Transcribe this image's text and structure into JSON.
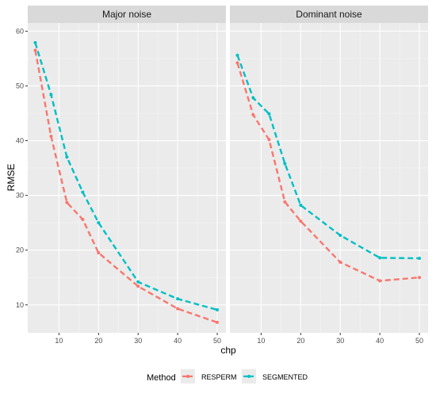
{
  "chart_data": {
    "type": "line",
    "ylabel": "RMSE",
    "xlabel": "chp",
    "x_ticks": [
      10,
      20,
      30,
      40,
      50
    ],
    "y_ticks": [
      10,
      20,
      30,
      40,
      50,
      60
    ],
    "xlim": [
      2.1,
      52.2
    ],
    "ylim": [
      4.9,
      61.5
    ],
    "legend": {
      "title": "Method",
      "position": "bottom",
      "entries": [
        "RESPERM",
        "SEGMENTED"
      ]
    },
    "colors": {
      "RESPERM": "#F8766D",
      "SEGMENTED": "#00BFC4"
    },
    "grid": true,
    "panels": [
      {
        "title": "Major noise",
        "series": [
          {
            "name": "RESPERM",
            "x": [
              4,
              8,
              12,
              16,
              20,
              30,
              40,
              50
            ],
            "y": [
              56.5,
              40.8,
              28.7,
              25.6,
              19.5,
              13.4,
              9.3,
              6.8
            ]
          },
          {
            "name": "SEGMENTED",
            "x": [
              4,
              8,
              12,
              16,
              20,
              30,
              40,
              50
            ],
            "y": [
              57.9,
              48.4,
              37.0,
              30.6,
              25.0,
              14.2,
              11.1,
              9.1
            ]
          }
        ]
      },
      {
        "title": "Dominant noise",
        "series": [
          {
            "name": "RESPERM",
            "x": [
              4,
              8,
              12,
              16,
              20,
              30,
              40,
              50
            ],
            "y": [
              54.2,
              44.7,
              40.2,
              28.8,
              25.3,
              17.8,
              14.4,
              15.0
            ]
          },
          {
            "name": "SEGMENTED",
            "x": [
              4,
              8,
              12,
              16,
              20,
              30,
              40,
              50
            ],
            "y": [
              55.6,
              47.8,
              44.9,
              35.8,
              28.2,
              22.7,
              18.6,
              18.5
            ]
          }
        ]
      }
    ]
  }
}
